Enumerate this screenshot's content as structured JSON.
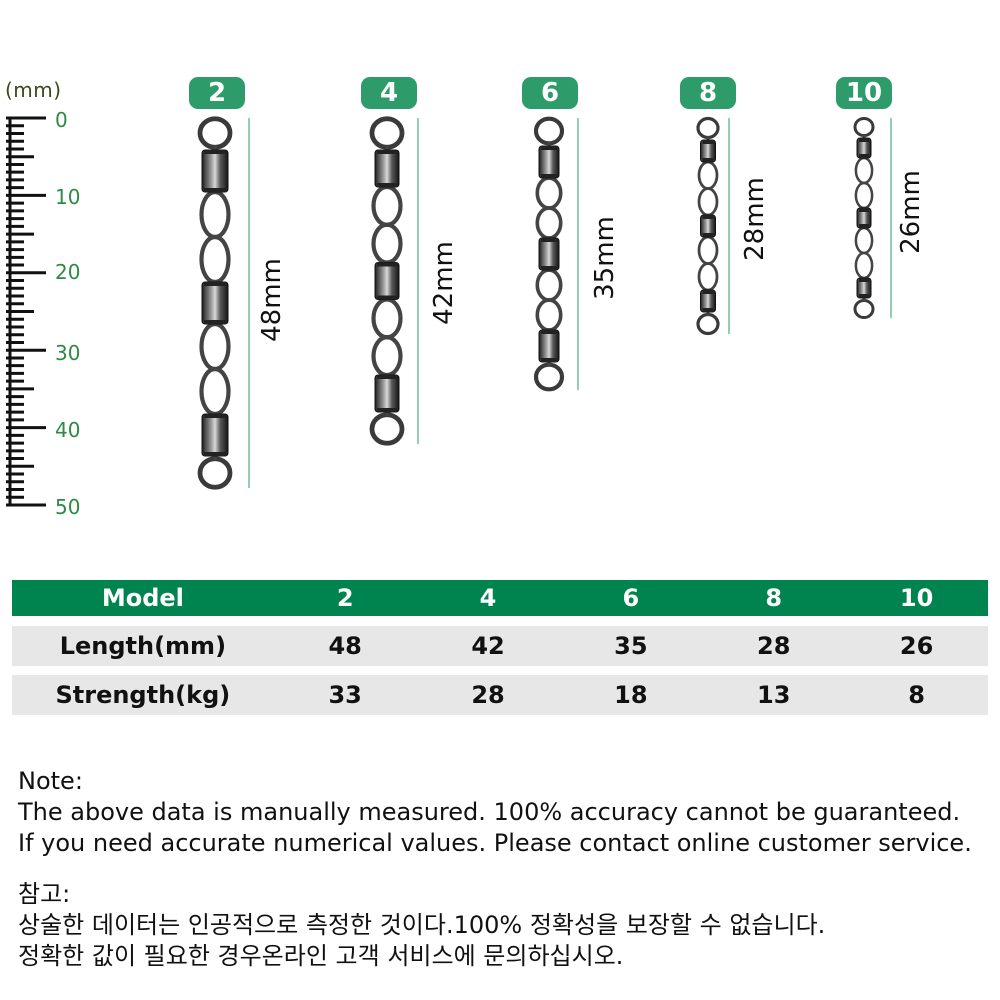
{
  "ruler": {
    "unit": "(mm)",
    "labels": [
      "0",
      "10",
      "20",
      "30",
      "40",
      "50"
    ]
  },
  "products": [
    {
      "model": "2",
      "length": "48mm"
    },
    {
      "model": "4",
      "length": "42mm"
    },
    {
      "model": "6",
      "length": "35mm"
    },
    {
      "model": "8",
      "length": "28mm"
    },
    {
      "model": "10",
      "length": "26mm"
    }
  ],
  "table": {
    "header": {
      "label": "Model",
      "values": [
        "2",
        "4",
        "6",
        "8",
        "10"
      ]
    },
    "rows": [
      {
        "label": "Length(mm)",
        "values": [
          "48",
          "42",
          "35",
          "28",
          "26"
        ]
      },
      {
        "label": "Strength(kg)",
        "values": [
          "33",
          "28",
          "18",
          "13",
          "8"
        ]
      }
    ]
  },
  "notes": {
    "english": [
      "Note:",
      "The above data is manually measured. 100% accuracy cannot be guaranteed.",
      "If you need accurate numerical values. Please contact online customer service."
    ],
    "korean": [
      "참고:",
      "상술한 데이터는 인공적으로 측정한 것이다.100% 정확성을 보장할 수 없습니다.",
      "정확한 값이 필요한 경우온라인 고객 서비스에 문의하십시오."
    ]
  },
  "colors": {
    "accent": "#00844f",
    "badge": "#2e9c6a",
    "ruler_numbers": "#2f8a45",
    "row_bg": "#e7e7e7",
    "dimension_line": "#6fbf95"
  }
}
